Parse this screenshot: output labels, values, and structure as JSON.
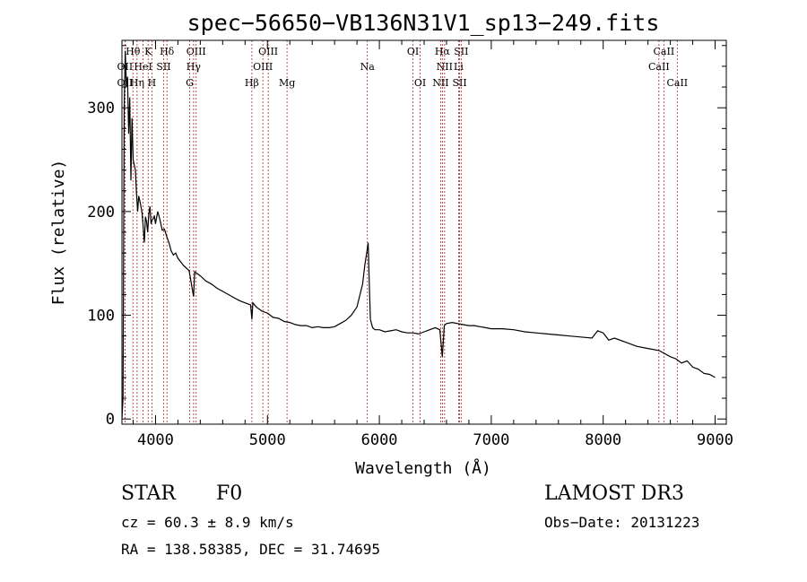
{
  "chart_data": {
    "type": "line",
    "title": "spec−56650−VB136N31V1_sp13−249.fits",
    "xlabel": "Wavelength (Å)",
    "ylabel": "Flux (relative)",
    "xlim": [
      3700,
      9100
    ],
    "ylim": [
      -5,
      365
    ],
    "xticks": [
      4000,
      5000,
      6000,
      7000,
      8000,
      9000
    ],
    "yticks": [
      0,
      100,
      200,
      300
    ],
    "line_color": "#000000",
    "marker_color": "#b22222",
    "series": [
      {
        "name": "spectrum",
        "x": [
          3700,
          3710,
          3720,
          3730,
          3740,
          3750,
          3760,
          3770,
          3780,
          3790,
          3800,
          3810,
          3820,
          3830,
          3840,
          3850,
          3860,
          3870,
          3880,
          3890,
          3900,
          3910,
          3920,
          3930,
          3940,
          3950,
          3960,
          3970,
          3980,
          3990,
          4000,
          4020,
          4040,
          4060,
          4080,
          4100,
          4120,
          4140,
          4160,
          4180,
          4200,
          4250,
          4300,
          4340,
          4350,
          4400,
          4450,
          4500,
          4550,
          4600,
          4650,
          4700,
          4750,
          4800,
          4850,
          4861,
          4870,
          4900,
          4950,
          5000,
          5050,
          5100,
          5150,
          5200,
          5250,
          5300,
          5350,
          5400,
          5450,
          5500,
          5550,
          5600,
          5650,
          5700,
          5750,
          5800,
          5850,
          5870,
          5890,
          5900,
          5910,
          5920,
          5930,
          5940,
          5960,
          6000,
          6050,
          6100,
          6150,
          6200,
          6250,
          6300,
          6350,
          6400,
          6450,
          6500,
          6540,
          6563,
          6580,
          6600,
          6650,
          6700,
          6750,
          6800,
          6850,
          6900,
          6950,
          7000,
          7100,
          7200,
          7300,
          7400,
          7500,
          7600,
          7700,
          7800,
          7900,
          7950,
          8000,
          8050,
          8100,
          8200,
          8300,
          8400,
          8500,
          8600,
          8650,
          8700,
          8750,
          8800,
          8850,
          8900,
          8950,
          9000
        ],
        "y": [
          0,
          20,
          300,
          355,
          320,
          330,
          275,
          310,
          230,
          290,
          250,
          245,
          240,
          218,
          200,
          215,
          210,
          205,
          198,
          185,
          170,
          195,
          190,
          180,
          198,
          205,
          188,
          192,
          193,
          196,
          188,
          200,
          192,
          182,
          183,
          176,
          170,
          162,
          158,
          160,
          155,
          148,
          143,
          118,
          142,
          138,
          133,
          130,
          126,
          123,
          120,
          117,
          114,
          112,
          110,
          96,
          112,
          108,
          104,
          102,
          98,
          97,
          94,
          93,
          91,
          90,
          90,
          88,
          89,
          88,
          88,
          89,
          92,
          95,
          100,
          108,
          130,
          148,
          162,
          170,
          132,
          96,
          92,
          88,
          86,
          86,
          84,
          85,
          86,
          84,
          83,
          83,
          82,
          84,
          86,
          88,
          86,
          60,
          90,
          92,
          93,
          92,
          91,
          90,
          90,
          89,
          88,
          87,
          87,
          86,
          84,
          83,
          82,
          81,
          80,
          79,
          78,
          85,
          83,
          76,
          78,
          74,
          70,
          68,
          66,
          60,
          58,
          54,
          56,
          50,
          48,
          44,
          43,
          40
        ]
      }
    ],
    "line_markers": [
      {
        "label": "Hθ",
        "x": 3798,
        "row": 1
      },
      {
        "label": "K",
        "x": 3934,
        "row": 1
      },
      {
        "label": "Hδ",
        "x": 4102,
        "row": 1
      },
      {
        "label": "OIII",
        "x": 4363,
        "row": 1
      },
      {
        "label": "OIII",
        "x": 5007,
        "row": 1
      },
      {
        "label": "OI",
        "x": 6300,
        "row": 1
      },
      {
        "label": "Hα",
        "x": 6563,
        "row": 1
      },
      {
        "label": "SII",
        "x": 6731,
        "row": 1
      },
      {
        "label": "CaII",
        "x": 8542,
        "row": 1
      },
      {
        "label": "OII",
        "x": 3727,
        "row": 2
      },
      {
        "label": "HeI",
        "x": 3889,
        "row": 2
      },
      {
        "label": "SII",
        "x": 4072,
        "row": 2
      },
      {
        "label": "Hγ",
        "x": 4340,
        "row": 2
      },
      {
        "label": "OIII",
        "x": 4959,
        "row": 2
      },
      {
        "label": "Na",
        "x": 5893,
        "row": 2
      },
      {
        "label": "NII",
        "x": 6583,
        "row": 2
      },
      {
        "label": "Li",
        "x": 6708,
        "row": 2
      },
      {
        "label": "CaII",
        "x": 8498,
        "row": 2
      },
      {
        "label": "OII",
        "x": 3727,
        "row": 3
      },
      {
        "label": "Hη",
        "x": 3835,
        "row": 3
      },
      {
        "label": "H",
        "x": 3968,
        "row": 3
      },
      {
        "label": "G",
        "x": 4305,
        "row": 3
      },
      {
        "label": "Hβ",
        "x": 4861,
        "row": 3
      },
      {
        "label": "Mg",
        "x": 5175,
        "row": 3
      },
      {
        "label": "OI",
        "x": 6364,
        "row": 3
      },
      {
        "label": "NII",
        "x": 6548,
        "row": 3
      },
      {
        "label": "SII",
        "x": 6717,
        "row": 3
      },
      {
        "label": "CaII",
        "x": 8662,
        "row": 3
      }
    ]
  },
  "info": {
    "class_label": "STAR",
    "subclass": "F0",
    "survey": "LAMOST DR3",
    "redshift": "cz = 60.3 ± 8.9 km/s",
    "obs_date": "Obs−Date: 20131223",
    "coords": "RA = 138.58385, DEC =  31.74695"
  }
}
